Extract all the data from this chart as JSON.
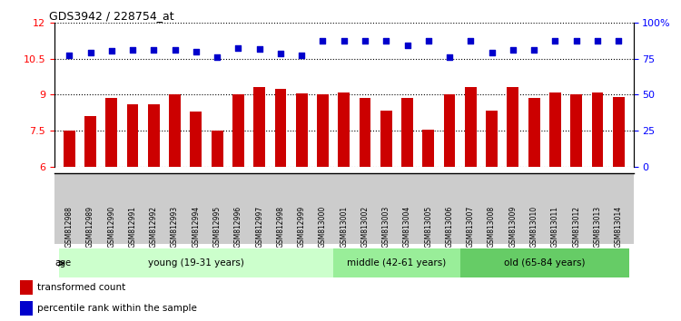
{
  "title": "GDS3942 / 228754_at",
  "samples": [
    "GSM812988",
    "GSM812989",
    "GSM812990",
    "GSM812991",
    "GSM812992",
    "GSM812993",
    "GSM812994",
    "GSM812995",
    "GSM812996",
    "GSM812997",
    "GSM812998",
    "GSM812999",
    "GSM813000",
    "GSM813001",
    "GSM813002",
    "GSM813003",
    "GSM813004",
    "GSM813005",
    "GSM813006",
    "GSM813007",
    "GSM813008",
    "GSM813009",
    "GSM813010",
    "GSM813011",
    "GSM813012",
    "GSM813013",
    "GSM813014"
  ],
  "bar_values": [
    7.5,
    8.1,
    8.85,
    8.6,
    8.6,
    9.0,
    8.3,
    7.5,
    9.0,
    9.3,
    9.25,
    9.05,
    9.0,
    9.1,
    8.85,
    8.35,
    8.85,
    7.55,
    9.0,
    9.3,
    8.35,
    9.3,
    8.85,
    9.1,
    9.0,
    9.1,
    8.9
  ],
  "percentile_values": [
    10.65,
    10.75,
    10.82,
    10.88,
    10.85,
    10.88,
    10.78,
    10.55,
    10.95,
    10.9,
    10.7,
    10.62,
    11.25,
    11.25,
    11.22,
    11.22,
    11.05,
    11.22,
    10.56,
    11.22,
    10.75,
    10.85,
    10.85,
    11.22,
    11.25,
    11.22,
    11.22
  ],
  "bar_color": "#cc0000",
  "percentile_color": "#0000cc",
  "ylim_left": [
    6,
    12
  ],
  "yticks_left": [
    6,
    7.5,
    9,
    10.5,
    12
  ],
  "ylim_right": [
    0,
    100
  ],
  "yticks_right": [
    0,
    25,
    50,
    75,
    100
  ],
  "ytick_labels_right": [
    "0",
    "25",
    "50",
    "75",
    "100%"
  ],
  "groups": [
    {
      "label": "young (19-31 years)",
      "start": 0,
      "end": 13,
      "color": "#ccffcc"
    },
    {
      "label": "middle (42-61 years)",
      "start": 13,
      "end": 19,
      "color": "#99ee99"
    },
    {
      "label": "old (65-84 years)",
      "start": 19,
      "end": 27,
      "color": "#66cc66"
    }
  ],
  "age_label": "age",
  "legend_bar_label": "transformed count",
  "legend_pct_label": "percentile rank within the sample",
  "dotted_line_color": "#000000",
  "bg_color": "#ffffff",
  "tick_area_color": "#cccccc"
}
